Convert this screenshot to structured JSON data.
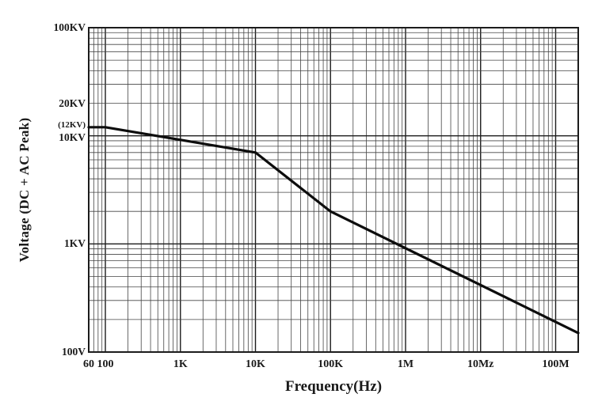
{
  "chart_data": {
    "type": "line",
    "title": "",
    "xlabel": "Frequency(Hz)",
    "ylabel": "Voltage (DC + AC Peak)",
    "x_scale": "log",
    "y_scale": "log",
    "xlim": [
      60,
      200000000
    ],
    "ylim": [
      100,
      100000
    ],
    "grid": "log-log, minor lines 2-9 per decade, on",
    "legend": "none",
    "series": [
      {
        "name": "voltage-derating-curve",
        "points": [
          {
            "f_hz": 60,
            "v_volts": 12000
          },
          {
            "f_hz": 100,
            "v_volts": 12000
          },
          {
            "f_hz": 1000,
            "v_volts": 9200
          },
          {
            "f_hz": 10000,
            "v_volts": 7000
          },
          {
            "f_hz": 100000,
            "v_volts": 2000
          },
          {
            "f_hz": 1000000,
            "v_volts": 950
          },
          {
            "f_hz": 10000000,
            "v_volts": 410
          },
          {
            "f_hz": 100000000,
            "v_volts": 185
          },
          {
            "f_hz": 200000000,
            "v_volts": 150
          }
        ],
        "breakpoints": [
          {
            "f_hz": 60,
            "v_volts": 12000
          },
          {
            "f_hz": 100,
            "v_volts": 12000
          },
          {
            "f_hz": 10000,
            "v_volts": 7000
          },
          {
            "f_hz": 100000,
            "v_volts": 2000
          },
          {
            "f_hz": 200000000,
            "v_volts": 150
          }
        ]
      }
    ],
    "x_ticks": [
      {
        "label": "60",
        "value": 60
      },
      {
        "label": "100",
        "value": 100
      },
      {
        "label": "1K",
        "value": 1000
      },
      {
        "label": "10K",
        "value": 10000
      },
      {
        "label": "100K",
        "value": 100000
      },
      {
        "label": "1M",
        "value": 1000000
      },
      {
        "label": "10Mz",
        "value": 10000000
      },
      {
        "label": "100M",
        "value": 100000000
      }
    ],
    "y_ticks": [
      {
        "label": "100KV",
        "value": 100000,
        "kind": "major"
      },
      {
        "label": "20KV",
        "value": 20000,
        "kind": "major"
      },
      {
        "label": "(12KV)",
        "value": 12000,
        "kind": "annotation"
      },
      {
        "label": "10KV",
        "value": 10000,
        "kind": "major"
      },
      {
        "label": "1KV",
        "value": 1000,
        "kind": "major"
      },
      {
        "label": "100V",
        "value": 100,
        "kind": "major"
      }
    ],
    "colors": {
      "curve": "#0d0d0d",
      "grid_major": "#1c1c1c",
      "grid_minor": "#454545",
      "border": "#1c1c1c",
      "background": "#ffffff",
      "text": "#1a1a1a"
    }
  }
}
